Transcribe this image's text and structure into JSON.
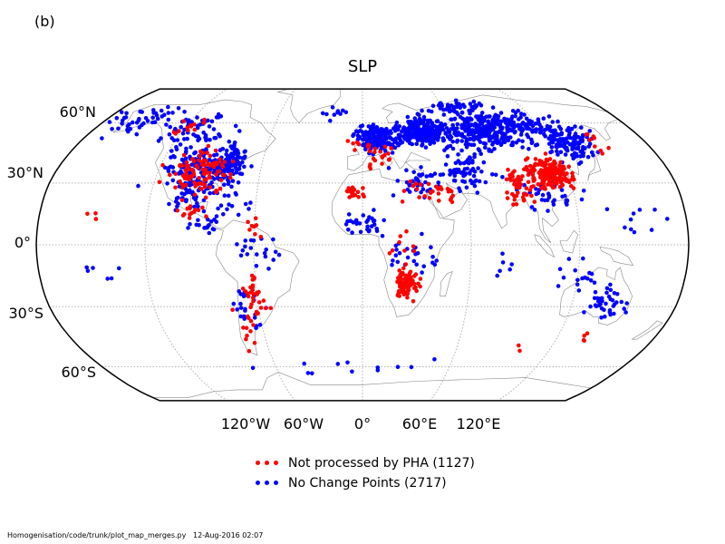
{
  "panel_label": "(b)",
  "map": {
    "title": "SLP",
    "lat_labels": [
      "60°N",
      "30°N",
      "0°",
      "30°S",
      "60°S"
    ],
    "lon_labels": [
      "120°W",
      "60°W",
      "0°",
      "60°E",
      "120°E"
    ],
    "gridline_style": "dotted",
    "projection": "Robinson (global)"
  },
  "legend": {
    "items": [
      {
        "label": "Not processed by PHA (1127)",
        "color": "#ff0000"
      },
      {
        "label": "No Change Points (2717)",
        "color": "#0000ff"
      }
    ]
  },
  "colors": {
    "red": "#ff0000",
    "blue": "#0000ff",
    "coast": "#888888",
    "grid": "#b0b0b0"
  },
  "footer": {
    "path": "Homogenisation/code/trunk/plot_map_merges.py",
    "timestamp": "12-Aug-2016 02:07"
  }
}
